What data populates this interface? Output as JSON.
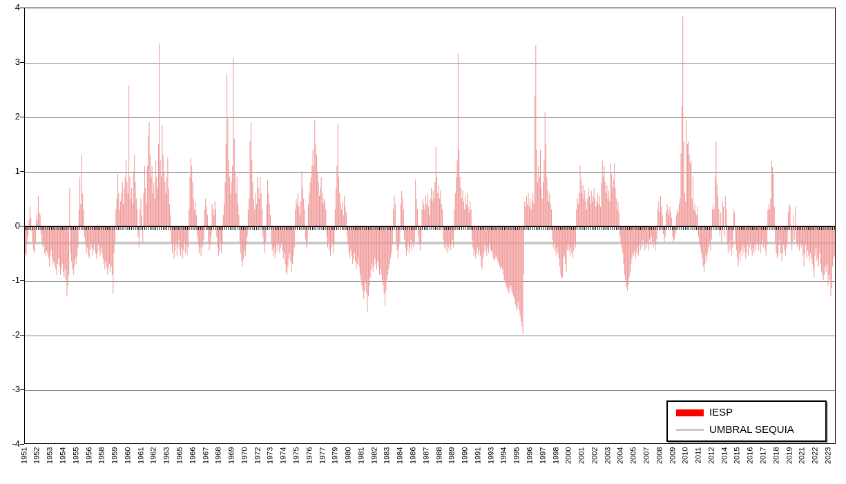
{
  "legend": {
    "items": [
      {
        "label": "IESP",
        "swatch": "bar",
        "color": "#FF0000"
      },
      {
        "label": "UMBRAL SEQUIA",
        "swatch": "line",
        "color": "#C9C9C9"
      }
    ]
  },
  "colors": {
    "bar_fill": "#F09595",
    "threshold_line": "#C9C9C9",
    "gridline": "#808080",
    "axis": "#000000",
    "background": "#FFFFFF"
  },
  "chart_data": {
    "type": "bar",
    "title": "",
    "xlabel": "",
    "ylabel": "",
    "ylim": [
      -4,
      4
    ],
    "y_tick_labels": [
      4,
      3,
      2,
      1,
      0,
      -1,
      -2,
      -3,
      -4
    ],
    "grid": "horizontal",
    "legend_position": "bottom-right",
    "frequency": "monthly",
    "start_year": 1951,
    "end_year": 2023,
    "x_tick_interval_months": 14,
    "x_tick_labels": [
      "1951",
      "1952",
      "1953",
      "1954",
      "1955",
      "1956",
      "1958",
      "1959",
      "1960",
      "1961",
      "1962",
      "1963",
      "1965",
      "1966",
      "1967",
      "1968",
      "1969",
      "1970",
      "1972",
      "1973",
      "1974",
      "1975",
      "1976",
      "1977",
      "1979",
      "1980",
      "1981",
      "1982",
      "1983",
      "1984",
      "1986",
      "1987",
      "1988",
      "1989",
      "1990",
      "1991",
      "1993",
      "1994",
      "1995",
      "1996",
      "1997",
      "1998",
      "2000",
      "2001",
      "2002",
      "2003",
      "2004",
      "2005",
      "2007",
      "2008",
      "2009",
      "2010",
      "2011",
      "2012",
      "2014",
      "2015",
      "2016",
      "2017",
      "2018",
      "2019",
      "2021",
      "2022",
      "2023"
    ],
    "series": [
      {
        "name": "IESP",
        "values": [
          -0.5,
          -0.55,
          -0.35,
          -0.2,
          0.1,
          0.35,
          0.15,
          -0.1,
          -0.3,
          -0.45,
          -0.5,
          -0.3,
          0.2,
          0.1,
          0.55,
          0.25,
          0.2,
          -0.15,
          -0.3,
          -0.4,
          -0.35,
          -0.5,
          -0.55,
          -0.45,
          -0.5,
          -0.6,
          -0.75,
          -0.55,
          -0.45,
          -0.6,
          -0.7,
          -0.65,
          -0.75,
          -0.8,
          -0.9,
          -0.7,
          -0.6,
          -0.75,
          -0.9,
          -0.8,
          -0.7,
          -0.85,
          -0.95,
          -0.8,
          -1.0,
          -1.3,
          -1.1,
          -0.9,
          0.7,
          -0.5,
          -0.65,
          -0.8,
          -0.9,
          -0.75,
          -0.6,
          -0.7,
          -0.55,
          -0.4,
          0.3,
          0.9,
          0.4,
          1.3,
          0.6,
          0.3,
          -0.2,
          -0.35,
          -0.5,
          -0.4,
          -0.55,
          -0.6,
          -0.45,
          -0.3,
          -0.4,
          -0.55,
          -0.45,
          -0.3,
          -0.5,
          -0.6,
          -0.5,
          -0.35,
          -0.45,
          -0.55,
          -0.4,
          -0.5,
          -0.6,
          -0.7,
          -0.8,
          -0.65,
          -0.75,
          -0.9,
          -0.8,
          -0.7,
          -0.85,
          -0.75,
          -0.9,
          -1.25,
          -0.5,
          -0.3,
          0.3,
          0.5,
          0.95,
          0.6,
          0.3,
          0.45,
          0.6,
          0.8,
          0.4,
          0.7,
          0.9,
          1.2,
          0.8,
          0.6,
          2.58,
          0.9,
          0.5,
          0.7,
          0.4,
          1.0,
          1.3,
          0.8,
          0.5,
          0.3,
          -0.2,
          -0.4,
          0.3,
          0.5,
          0.2,
          -0.3,
          0.6,
          1.1,
          0.7,
          0.4,
          1.1,
          1.65,
          1.9,
          1.3,
          0.9,
          1.1,
          0.6,
          0.8,
          0.5,
          1.2,
          0.9,
          0.7,
          1.5,
          3.35,
          1.2,
          0.9,
          1.85,
          1.3,
          1.0,
          0.8,
          0.6,
          0.9,
          1.25,
          0.7,
          0.4,
          0.2,
          -0.3,
          -0.5,
          -0.35,
          -0.6,
          -0.45,
          -0.3,
          -0.55,
          -0.4,
          -0.25,
          -0.45,
          -0.55,
          -0.4,
          -0.6,
          -0.45,
          -0.3,
          -0.5,
          -0.35,
          -0.55,
          -0.4,
          0.3,
          0.9,
          1.25,
          1.1,
          0.8,
          0.5,
          0.3,
          0.45,
          0.2,
          -0.2,
          -0.35,
          -0.5,
          -0.4,
          -0.55,
          -0.3,
          -0.4,
          -0.25,
          0.3,
          0.5,
          0.35,
          0.2,
          -0.3,
          -0.45,
          -0.35,
          -0.2,
          0.4,
          0.3,
          0.2,
          0.45,
          0.3,
          -0.2,
          -0.4,
          -0.55,
          -0.45,
          -0.3,
          -0.5,
          -0.35,
          0.2,
          0.4,
          0.8,
          1.5,
          2.8,
          2.0,
          1.2,
          0.9,
          0.6,
          0.8,
          1.1,
          3.08,
          1.6,
          1.0,
          0.6,
          0.9,
          0.4,
          0.2,
          -0.3,
          -0.5,
          -0.65,
          -0.75,
          -0.6,
          -0.45,
          -0.55,
          -0.35,
          -0.2,
          0.3,
          0.5,
          1.55,
          1.9,
          1.2,
          0.8,
          0.5,
          0.3,
          0.6,
          0.4,
          0.9,
          0.7,
          0.5,
          0.9,
          0.6,
          0.3,
          -0.2,
          -0.35,
          -0.5,
          -0.3,
          0.4,
          0.85,
          0.6,
          0.4,
          0.2,
          -0.3,
          -0.45,
          -0.55,
          -0.4,
          -0.6,
          -0.5,
          -0.35,
          -0.45,
          -0.3,
          -0.5,
          -0.4,
          -0.3,
          -0.45,
          -0.6,
          -0.5,
          -0.7,
          -0.85,
          -0.9,
          -0.75,
          -0.6,
          -0.5,
          -0.65,
          -0.85,
          -0.7,
          -0.55,
          -0.4,
          0.3,
          0.5,
          0.4,
          0.6,
          0.35,
          0.2,
          0.45,
          1.0,
          0.7,
          0.5,
          0.3,
          -0.25,
          -0.4,
          -0.3,
          0.4,
          0.6,
          0.8,
          0.9,
          1.1,
          1.4,
          1.1,
          1.95,
          1.5,
          1.3,
          1.0,
          0.8,
          0.55,
          0.7,
          0.9,
          0.6,
          0.4,
          0.5,
          0.45,
          0.3,
          -0.2,
          -0.4,
          -0.3,
          -0.45,
          -0.55,
          -0.4,
          -0.3,
          -0.5,
          -0.35,
          0.3,
          0.7,
          1.1,
          1.87,
          0.9,
          0.6,
          0.4,
          0.3,
          0.45,
          0.2,
          0.55,
          0.35,
          0.25,
          -0.2,
          -0.35,
          -0.5,
          -0.6,
          -0.45,
          -0.55,
          -0.7,
          -0.6,
          -0.5,
          -0.65,
          -0.8,
          -0.7,
          -0.6,
          -0.75,
          -0.9,
          -1.0,
          -1.1,
          -1.2,
          -1.35,
          -1.2,
          -1.05,
          -1.25,
          -1.58,
          -1.3,
          -1.1,
          -0.95,
          -0.8,
          -0.7,
          -0.85,
          -0.75,
          -0.6,
          -0.7,
          -0.8,
          -0.65,
          -0.75,
          -0.9,
          -0.8,
          -0.9,
          -1.0,
          -1.1,
          -1.25,
          -1.47,
          -1.2,
          -1.0,
          -0.9,
          -0.8,
          -0.7,
          -0.6,
          -0.5,
          -0.35,
          0.3,
          0.55,
          0.4,
          -0.3,
          -0.45,
          -0.6,
          -0.4,
          -0.3,
          0.4,
          0.65,
          0.5,
          0.3,
          -0.25,
          -0.4,
          -0.55,
          -0.45,
          -0.3,
          -0.5,
          -0.4,
          -0.25,
          -0.45,
          -0.3,
          -0.4,
          -0.3,
          0.85,
          0.5,
          0.3,
          -0.2,
          -0.35,
          -0.45,
          -0.3,
          0.3,
          0.5,
          0.4,
          0.3,
          0.55,
          0.4,
          0.6,
          0.35,
          0.2,
          0.5,
          0.7,
          0.45,
          0.65,
          0.5,
          0.8,
          1.45,
          0.9,
          0.6,
          0.75,
          0.5,
          0.65,
          0.4,
          0.3,
          -0.25,
          -0.4,
          -0.3,
          -0.45,
          -0.35,
          -0.5,
          -0.4,
          -0.3,
          -0.45,
          -0.35,
          -0.25,
          -0.4,
          0.3,
          0.6,
          0.9,
          1.2,
          3.17,
          1.4,
          0.9,
          0.7,
          0.5,
          0.65,
          0.45,
          0.3,
          0.55,
          0.4,
          0.6,
          0.35,
          0.25,
          0.45,
          0.3,
          -0.25,
          -0.4,
          -0.55,
          -0.45,
          -0.6,
          -0.5,
          -0.4,
          -0.55,
          -0.45,
          -0.55,
          -0.75,
          -0.8,
          -0.6,
          -0.5,
          -0.35,
          -0.45,
          -0.55,
          -0.4,
          -0.5,
          -0.3,
          -0.45,
          -0.45,
          -0.5,
          -0.6,
          -0.65,
          -0.6,
          -0.55,
          -0.6,
          -0.65,
          -0.7,
          -0.75,
          -0.8,
          -0.75,
          -0.8,
          -0.9,
          -1.0,
          -1.05,
          -1.1,
          -1.15,
          -1.2,
          -1.25,
          -1.15,
          -1.1,
          -1.2,
          -1.25,
          -1.3,
          -1.35,
          -1.45,
          -1.55,
          -1.5,
          -1.4,
          -1.55,
          -1.65,
          -1.75,
          -1.85,
          -1.98,
          -0.9,
          0.45,
          0.35,
          0.55,
          0.4,
          0.6,
          0.35,
          0.5,
          0.3,
          0.45,
          0.6,
          0.4,
          2.38,
          3.32,
          1.4,
          0.8,
          1.1,
          0.9,
          1.4,
          0.7,
          0.5,
          0.8,
          1.2,
          2.1,
          1.5,
          0.9,
          0.65,
          0.45,
          0.6,
          0.4,
          0.3,
          -0.25,
          -0.4,
          -0.3,
          -0.45,
          -0.55,
          -0.4,
          -0.5,
          -0.6,
          -0.75,
          -0.9,
          -0.97,
          -0.95,
          -0.6,
          -0.55,
          -0.7,
          -0.85,
          -0.45,
          -0.35,
          -0.45,
          -0.55,
          -0.4,
          -0.5,
          -0.6,
          -0.45,
          -0.3,
          -0.4,
          0.3,
          0.5,
          0.4,
          0.6,
          1.1,
          0.85,
          0.6,
          0.75,
          0.5,
          0.65,
          0.45,
          0.3,
          0.5,
          0.7,
          0.55,
          0.4,
          0.65,
          0.45,
          0.55,
          0.7,
          0.5,
          0.35,
          0.45,
          0.6,
          0.4,
          0.55,
          0.35,
          0.8,
          1.2,
          0.9,
          1.1,
          0.8,
          0.6,
          0.75,
          0.5,
          0.65,
          0.45,
          1.15,
          0.95,
          0.7,
          0.85,
          1.15,
          0.7,
          0.5,
          0.3,
          0.45,
          0.25,
          -0.2,
          -0.3,
          -0.4,
          -0.5,
          -0.7,
          -0.9,
          -1.0,
          -1.13,
          -1.2,
          -1.1,
          -0.95,
          -0.85,
          -0.7,
          -0.6,
          -0.5,
          -0.55,
          -0.45,
          -0.6,
          -0.5,
          -0.4,
          -0.55,
          -0.35,
          -0.45,
          -0.3,
          -0.4,
          -0.25,
          -0.35,
          -0.45,
          -0.3,
          -0.4,
          -0.3,
          -0.45,
          -0.25,
          -0.35,
          -0.2,
          -0.3,
          -0.4,
          -0.3,
          -0.45,
          -0.35,
          -0.25,
          0.3,
          0.45,
          0.25,
          0.55,
          0.35,
          0.2,
          -0.15,
          -0.3,
          -0.2,
          0.25,
          0.4,
          0.3,
          0.2,
          0.35,
          0.25,
          0.15,
          -0.2,
          -0.3,
          -0.25,
          -0.15,
          0.2,
          0.3,
          0.25,
          0.4,
          0.5,
          1.33,
          2.2,
          3.85,
          1.55,
          0.6,
          0.45,
          1.94,
          1.5,
          1.55,
          1.3,
          1.15,
          1.2,
          0.5,
          0.9,
          0.3,
          0.4,
          0.25,
          0.2,
          0.35,
          -0.2,
          -0.35,
          -0.4,
          -0.5,
          -0.6,
          -0.75,
          -0.85,
          -0.7,
          -0.55,
          -0.65,
          -0.5,
          -0.4,
          -0.3,
          -0.45,
          -0.25,
          0.3,
          0.4,
          0.3,
          0.9,
          1.55,
          0.75,
          0.55,
          0.3,
          -0.2,
          0.25,
          -0.3,
          0.45,
          0.35,
          -0.2,
          0.55,
          0.3,
          -0.35,
          -0.5,
          -0.3,
          -0.45,
          -0.25,
          -0.55,
          -0.4,
          0.3,
          0.25,
          -0.3,
          -0.45,
          -0.6,
          -0.75,
          -0.5,
          -0.65,
          -0.45,
          -0.55,
          -0.35,
          -0.5,
          -0.4,
          -0.6,
          -0.5,
          -0.35,
          -0.55,
          -0.4,
          -0.3,
          -0.45,
          -0.55,
          -0.4,
          -0.5,
          -0.35,
          -0.45,
          -0.3,
          -0.35,
          -0.45,
          -0.3,
          -0.5,
          -0.35,
          -0.25,
          -0.4,
          -0.3,
          -0.45,
          -0.55,
          -0.35,
          0.3,
          0.4,
          0.3,
          0.5,
          1.2,
          1.08,
          0.95,
          0.35,
          -0.3,
          -0.5,
          -0.6,
          -0.55,
          -0.35,
          -0.25,
          -0.5,
          -0.65,
          -0.5,
          -0.35,
          -0.45,
          -0.55,
          -0.4,
          -0.3,
          0.25,
          0.4,
          0.35,
          -0.3,
          -0.45,
          -0.3,
          0.2,
          -0.25,
          0.35,
          -0.3,
          -0.4,
          -0.35,
          -0.45,
          -0.3,
          -0.4,
          -0.35,
          -0.55,
          -0.75,
          -0.5,
          -0.35,
          -0.6,
          -0.45,
          -0.55,
          -0.65,
          -0.5,
          -0.6,
          -0.7,
          -0.8,
          -0.95,
          -0.55,
          -0.4,
          -0.65,
          -0.6,
          -0.75,
          -0.5,
          -0.7,
          -0.85,
          -0.9,
          -1.0,
          -0.9,
          -0.75,
          -0.85,
          -0.7,
          -1.1,
          -0.9,
          -1.0,
          -1.3,
          -1.15,
          -0.75,
          -0.6,
          -0.55
        ]
      },
      {
        "name": "UMBRAL SEQUIA",
        "style": "horizontal-line",
        "value": -0.3
      }
    ]
  }
}
